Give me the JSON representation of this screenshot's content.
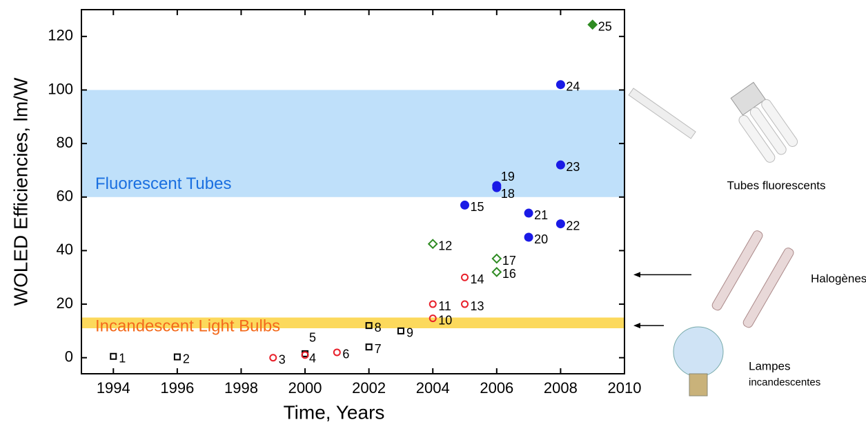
{
  "chart_data": {
    "type": "scatter",
    "x_label": "Time, Years",
    "y_label": "WOLED Efficiencies, lm/W",
    "xlim": [
      1993,
      2010
    ],
    "ylim": [
      -6,
      130
    ],
    "xticks": [
      1994,
      1996,
      1998,
      2000,
      2002,
      2004,
      2006,
      2008,
      2010
    ],
    "yticks": [
      0,
      20,
      40,
      60,
      80,
      100,
      120
    ],
    "bands": [
      {
        "label": "Fluorescent Tubes",
        "range": [
          60,
          100
        ],
        "color": "#bfe0fa",
        "text_color": "#1a6fe0"
      },
      {
        "label": "Incandescent Light Bulbs",
        "range": [
          11,
          15
        ],
        "color": "#fcd95c",
        "text_color": "#f36a1c"
      }
    ],
    "reference_arrows": [
      31,
      12
    ],
    "series": [
      {
        "marker": "square",
        "filled": false,
        "color": "#000000",
        "x": [
          1994,
          1996,
          2000,
          2002,
          2002,
          2003
        ],
        "values": [
          0.5,
          0.3,
          1.5,
          4,
          12,
          10
        ],
        "labels": [
          "1",
          "2",
          "5",
          "7",
          "8",
          "9"
        ]
      },
      {
        "marker": "circle",
        "filled": false,
        "color": "#e8202a",
        "x": [
          1999,
          2000,
          2001,
          2004,
          2004,
          2005,
          2005
        ],
        "values": [
          0,
          1,
          2,
          14.7,
          20,
          20,
          30
        ],
        "labels": [
          "3",
          "4",
          "6",
          "10",
          "11",
          "13",
          "14"
        ]
      },
      {
        "marker": "diamond",
        "filled": false,
        "color": "#2e8b22",
        "x": [
          2004,
          2006,
          2006
        ],
        "values": [
          42.5,
          32,
          37
        ],
        "labels": [
          "12",
          "16",
          "17"
        ]
      },
      {
        "marker": "circle",
        "filled": true,
        "color": "#1a1ae6",
        "x": [
          2005,
          2006,
          2006,
          2007,
          2007,
          2008,
          2008,
          2008
        ],
        "values": [
          57,
          63.5,
          64.3,
          45,
          54,
          50,
          72,
          102
        ],
        "labels": [
          "15",
          "18",
          "19",
          "20",
          "21",
          "22",
          "23",
          "24"
        ]
      },
      {
        "marker": "diamond",
        "filled": true,
        "color": "#2e8b22",
        "x": [
          2009
        ],
        "values": [
          124.4
        ],
        "labels": [
          "25"
        ]
      }
    ]
  },
  "pictures": {
    "fluorescent": "Tubes fluorescents",
    "halogen": "Halogènes",
    "incandescent": [
      "Lampes",
      "incandescentes"
    ]
  }
}
